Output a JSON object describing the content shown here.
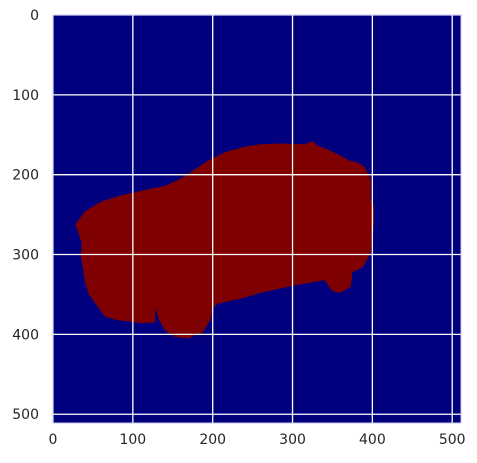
{
  "chart_data": {
    "type": "heatmap",
    "title": "",
    "xlabel": "",
    "ylabel": "",
    "xlim": [
      0,
      511
    ],
    "ylim": [
      511,
      0
    ],
    "y_axis_inverted": true,
    "grid": true,
    "legend": "none",
    "colormap": "jet",
    "values_present": [
      0,
      1
    ],
    "colors": {
      "background_class": "#00007f",
      "object_class": "#7f0000",
      "grid": "#ffffff",
      "axes_edge": "#c8c8f0",
      "tick_text": "#262626"
    },
    "x_ticks": [
      0,
      100,
      200,
      300,
      400,
      500
    ],
    "x_tick_labels": [
      "0",
      "100",
      "200",
      "300",
      "400",
      "500"
    ],
    "y_ticks": [
      0,
      100,
      200,
      300,
      400,
      500
    ],
    "y_tick_labels": [
      "0",
      "100",
      "200",
      "300",
      "400",
      "500"
    ],
    "mask_region": {
      "value": 1,
      "boundary": [
        [
          28,
          262
        ],
        [
          40,
          246
        ],
        [
          60,
          234
        ],
        [
          85,
          226
        ],
        [
          120,
          218
        ],
        [
          140,
          214
        ],
        [
          160,
          205
        ],
        [
          175,
          195
        ],
        [
          195,
          182
        ],
        [
          215,
          172
        ],
        [
          240,
          165
        ],
        [
          260,
          162
        ],
        [
          285,
          161
        ],
        [
          315,
          162
        ],
        [
          325,
          158
        ],
        [
          330,
          163
        ],
        [
          345,
          169
        ],
        [
          360,
          176
        ],
        [
          372,
          183
        ],
        [
          380,
          184
        ],
        [
          390,
          190
        ],
        [
          398,
          205
        ],
        [
          398,
          230
        ],
        [
          402,
          240
        ],
        [
          402,
          262
        ],
        [
          398,
          298
        ],
        [
          388,
          316
        ],
        [
          375,
          322
        ],
        [
          373,
          340
        ],
        [
          360,
          348
        ],
        [
          350,
          346
        ],
        [
          340,
          332
        ],
        [
          300,
          339
        ],
        [
          260,
          348
        ],
        [
          240,
          354
        ],
        [
          205,
          362
        ],
        [
          200,
          368
        ],
        [
          197,
          382
        ],
        [
          188,
          397
        ],
        [
          170,
          405
        ],
        [
          152,
          403
        ],
        [
          140,
          395
        ],
        [
          132,
          380
        ],
        [
          128,
          366
        ],
        [
          128,
          385
        ],
        [
          112,
          386
        ],
        [
          80,
          382
        ],
        [
          65,
          378
        ],
        [
          58,
          368
        ],
        [
          45,
          350
        ],
        [
          40,
          334
        ],
        [
          38,
          320
        ],
        [
          35,
          303
        ],
        [
          36,
          285
        ]
      ]
    }
  }
}
